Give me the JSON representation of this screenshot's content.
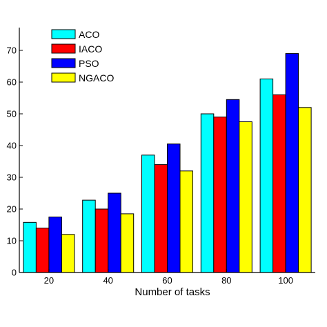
{
  "chart_data": {
    "type": "bar",
    "xlabel": "Number of tasks",
    "ylabel": "",
    "categories": [
      "20",
      "40",
      "60",
      "80",
      "100"
    ],
    "ylim": [
      0,
      75
    ],
    "yticks": [
      0,
      10,
      20,
      30,
      40,
      50,
      60,
      70
    ],
    "grid": false,
    "legend": "top-left",
    "series": [
      {
        "name": "ACO",
        "color": "#00ffff",
        "values": [
          15.8,
          22.8,
          37,
          50,
          61
        ]
      },
      {
        "name": "IACO",
        "color": "#ff0000",
        "values": [
          14,
          20,
          34,
          49,
          56
        ]
      },
      {
        "name": "PSO",
        "color": "#0000ff",
        "values": [
          17.5,
          25,
          40.5,
          54.5,
          69
        ]
      },
      {
        "name": "NGACO",
        "color": "#ffff00",
        "values": [
          12,
          18.5,
          32,
          47.5,
          52
        ]
      }
    ]
  }
}
